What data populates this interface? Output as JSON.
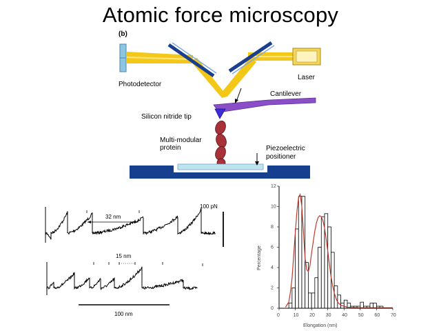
{
  "title": "Atomic force microscopy",
  "diagram": {
    "panel_label": "(b)",
    "labels": {
      "photodetector": "Photodetector",
      "laser": "Laser",
      "cantilever": "Cantilever",
      "tip": "Silicon nitride tip",
      "protein_line1": "Multi-modular",
      "protein_line2": "protein",
      "piezo_line1": "Piezoelectric",
      "piezo_line2": "positioner"
    },
    "colors": {
      "beam": "#f2c200",
      "detector": "#8ec5e0",
      "stage": "#163f8f",
      "cantilever": "#8a4fc8",
      "protein": "#a8323a"
    }
  },
  "traces": {
    "dim_32": "32 nm",
    "dim_15": "15 nm",
    "force_scale": "100 pN",
    "length_scale": "100 nm"
  },
  "histogram": {
    "ylabel": "Percentage",
    "xlabel": "Elongation (nm)",
    "x_ticks": [
      "0",
      "10",
      "20",
      "30",
      "40",
      "50",
      "60",
      "70"
    ],
    "y_ticks": [
      "0",
      "2",
      "4",
      "6",
      "8",
      "10",
      "12"
    ]
  },
  "chart_data": {
    "type": "bar",
    "xlabel": "Elongation (nm)",
    "ylabel": "Percentage",
    "xlim": [
      0,
      70
    ],
    "ylim": [
      0,
      12
    ],
    "bin_edges": [
      0,
      2,
      4,
      6,
      8,
      10,
      12,
      14,
      16,
      18,
      20,
      22,
      24,
      26,
      28,
      30,
      32,
      34,
      36,
      38,
      40,
      42,
      44,
      46,
      48,
      50,
      52,
      54,
      56,
      58,
      60,
      62,
      64,
      66,
      68,
      70
    ],
    "values": [
      0,
      0,
      0,
      0.5,
      2.0,
      7.8,
      11.0,
      11.0,
      4.5,
      1.5,
      1.5,
      3.0,
      6.0,
      9.0,
      9.3,
      8.0,
      5.5,
      2.2,
      1.3,
      0.5,
      0.8,
      0.5,
      0.2,
      0.2,
      0.2,
      0.6,
      0.2,
      0.2,
      0.5,
      0.5,
      0.2,
      0.2,
      0,
      0,
      0
    ],
    "fit_curve": [
      [
        4,
        0.1
      ],
      [
        6,
        0.6
      ],
      [
        7,
        1.6
      ],
      [
        8,
        3.0
      ],
      [
        9,
        5.2
      ],
      [
        10,
        7.5
      ],
      [
        11,
        9.5
      ],
      [
        12,
        10.9
      ],
      [
        13,
        11.2
      ],
      [
        14,
        10.0
      ],
      [
        15,
        7.5
      ],
      [
        16,
        5.0
      ],
      [
        17,
        3.8
      ],
      [
        18,
        3.6
      ],
      [
        19,
        4.2
      ],
      [
        20,
        5.4
      ],
      [
        21,
        6.5
      ],
      [
        22,
        7.6
      ],
      [
        23,
        8.4
      ],
      [
        24,
        8.9
      ],
      [
        25,
        9.1
      ],
      [
        26,
        9.0
      ],
      [
        27,
        8.6
      ],
      [
        28,
        7.9
      ],
      [
        29,
        6.8
      ],
      [
        30,
        5.6
      ],
      [
        31,
        4.3
      ],
      [
        32,
        3.1
      ],
      [
        33,
        2.2
      ],
      [
        34,
        1.5
      ],
      [
        35,
        1.0
      ],
      [
        36,
        0.6
      ],
      [
        38,
        0.3
      ],
      [
        42,
        0.1
      ],
      [
        50,
        0.05
      ],
      [
        60,
        0.05
      ],
      [
        70,
        0.05
      ]
    ]
  }
}
